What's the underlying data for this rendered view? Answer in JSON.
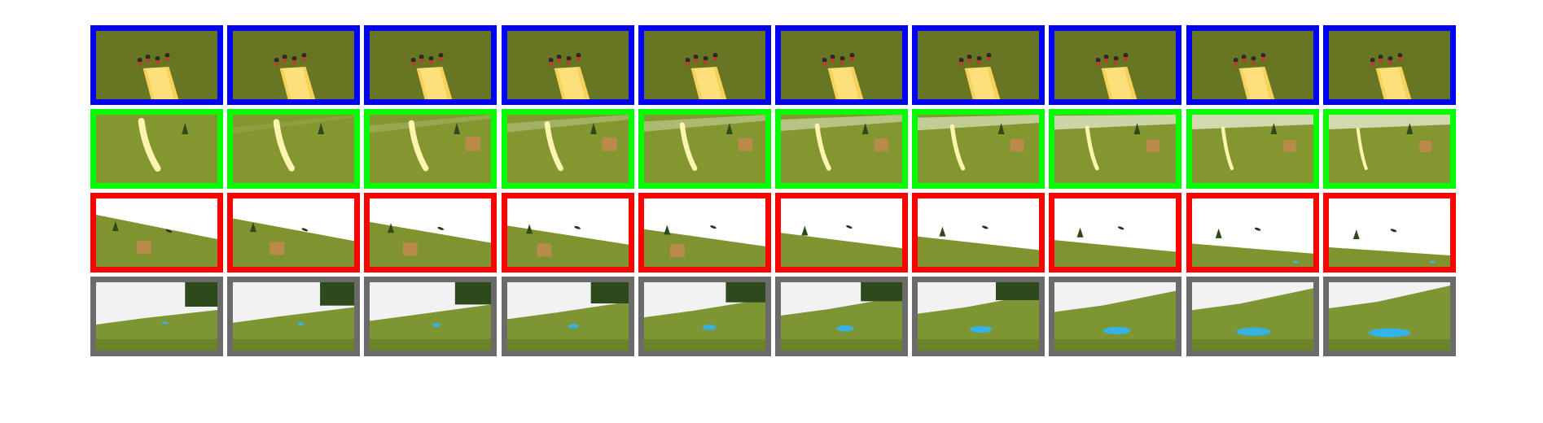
{
  "rows": [
    {
      "name": "blue",
      "color": "#0000ff",
      "frames": 10
    },
    {
      "name": "green",
      "color": "#00ff00",
      "frames": 10
    },
    {
      "name": "red",
      "color": "#ff0000",
      "frames": 10
    },
    {
      "name": "gray",
      "color": "#6b6b6b",
      "frames": 10
    }
  ]
}
